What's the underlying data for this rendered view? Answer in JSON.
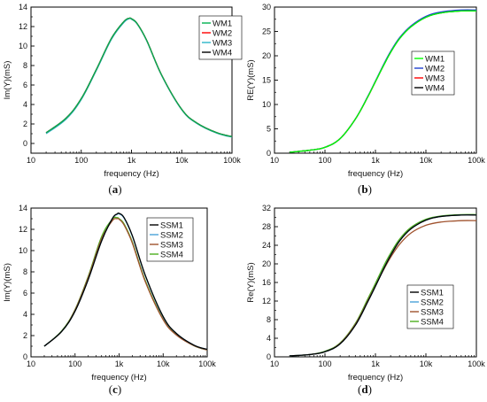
{
  "figure": {
    "captions": [
      "(a)",
      "(b)",
      "(c)",
      "(d)"
    ],
    "caption_bold_letters": [
      "a",
      "b",
      "c",
      "d"
    ]
  },
  "chart_data": [
    {
      "type": "line",
      "panel": "a",
      "xlabel": "frequency (Hz)",
      "ylabel": "Im(Y)(mS)",
      "xscale": "log",
      "xlim": [
        10,
        100000
      ],
      "ylim": [
        -1,
        14
      ],
      "x_ticks": [
        10,
        100,
        1000,
        10000,
        100000
      ],
      "x_tick_labels": [
        "10",
        "100",
        "1k",
        "10k",
        "100k"
      ],
      "y_ticks": [
        0,
        2,
        4,
        6,
        8,
        10,
        12,
        14
      ],
      "y_tick_labels": [
        "0",
        "2",
        "4",
        "6",
        "8",
        "10",
        "12",
        "14"
      ],
      "legend_position": "top-right",
      "x": [
        20,
        50,
        100,
        200,
        400,
        700,
        900,
        1000,
        1300,
        2000,
        4000,
        10000,
        20000,
        50000,
        100000
      ],
      "series": [
        {
          "name": "WM1",
          "color": "#00b050",
          "values": [
            1.1,
            2.6,
            4.6,
            7.6,
            10.8,
            12.5,
            12.85,
            12.8,
            12.3,
            10.6,
            7.0,
            3.5,
            2.1,
            1.1,
            0.7
          ]
        },
        {
          "name": "WM2",
          "color": "#ff0000",
          "values": [
            1.1,
            2.6,
            4.6,
            7.6,
            10.8,
            12.5,
            12.85,
            12.8,
            12.3,
            10.6,
            7.0,
            3.5,
            2.1,
            1.1,
            0.7
          ]
        },
        {
          "name": "WM3",
          "color": "#2ab7c9",
          "values": [
            1.0,
            2.5,
            4.5,
            7.5,
            10.7,
            12.4,
            12.8,
            12.75,
            12.25,
            10.55,
            6.95,
            3.45,
            2.05,
            1.05,
            0.65
          ]
        },
        {
          "name": "WM4",
          "color": "#000000",
          "values": [
            1.1,
            2.6,
            4.6,
            7.6,
            10.8,
            12.5,
            12.85,
            12.8,
            12.3,
            10.6,
            7.0,
            3.5,
            2.1,
            1.1,
            0.7
          ]
        }
      ]
    },
    {
      "type": "line",
      "panel": "b",
      "xlabel": "frequency (Hz)",
      "ylabel": "RE(Y)(mS)",
      "xscale": "log",
      "xlim": [
        10,
        100000
      ],
      "ylim": [
        0,
        30
      ],
      "x_ticks": [
        10,
        100,
        1000,
        10000,
        100000
      ],
      "x_tick_labels": [
        "10",
        "100",
        "1k",
        "10k",
        "100k"
      ],
      "y_ticks": [
        0,
        5,
        10,
        15,
        20,
        25,
        30
      ],
      "y_tick_labels": [
        "0",
        "5",
        "10",
        "15",
        "20",
        "25",
        "30"
      ],
      "legend_position": "center-right",
      "x": [
        20,
        50,
        100,
        200,
        400,
        700,
        1000,
        1500,
        2000,
        3000,
        5000,
        10000,
        20000,
        50000,
        100000
      ],
      "series": [
        {
          "name": "WM1",
          "color": "#00ff00",
          "values": [
            0.2,
            0.6,
            1.2,
            3.0,
            7.0,
            11.5,
            14.7,
            18.3,
            20.7,
            23.5,
            25.9,
            27.9,
            28.8,
            29.2,
            29.2
          ]
        },
        {
          "name": "WM2",
          "color": "#1f3fd0",
          "values": [
            0.2,
            0.6,
            1.2,
            3.0,
            7.0,
            11.6,
            14.8,
            18.5,
            20.9,
            23.7,
            26.1,
            28.1,
            29.0,
            29.4,
            29.4
          ]
        },
        {
          "name": "WM3",
          "color": "#ff0000",
          "values": [
            0.2,
            0.6,
            1.2,
            3.0,
            7.0,
            11.5,
            14.7,
            18.4,
            20.8,
            23.6,
            26.0,
            28.0,
            28.9,
            29.3,
            29.3
          ]
        },
        {
          "name": "WM4",
          "color": "#000000",
          "values": [
            0.2,
            0.6,
            1.2,
            3.0,
            7.0,
            11.5,
            14.7,
            18.3,
            20.7,
            23.5,
            25.9,
            27.9,
            28.8,
            29.2,
            29.2
          ]
        }
      ]
    },
    {
      "type": "line",
      "panel": "c",
      "xlabel": "frequency (Hz)",
      "ylabel": "Im(Y)(mS)",
      "xscale": "log",
      "xlim": [
        10,
        100000
      ],
      "ylim": [
        0,
        14
      ],
      "x_ticks": [
        10,
        100,
        1000,
        10000,
        100000
      ],
      "x_tick_labels": [
        "10",
        "100",
        "1k",
        "10k",
        "100k"
      ],
      "y_ticks": [
        0,
        2,
        4,
        6,
        8,
        10,
        12,
        14
      ],
      "y_tick_labels": [
        "0",
        "2",
        "4",
        "6",
        "8",
        "10",
        "12",
        "14"
      ],
      "legend_position": "top-right",
      "x": [
        20,
        50,
        100,
        200,
        400,
        700,
        900,
        1000,
        1300,
        2000,
        4000,
        10000,
        20000,
        50000,
        100000
      ],
      "series": [
        {
          "name": "SSM1",
          "color": "#000000",
          "values": [
            1.0,
            2.4,
            4.3,
            7.3,
            10.9,
            13.0,
            13.45,
            13.5,
            13.1,
            11.4,
            7.6,
            3.8,
            2.2,
            1.1,
            0.7
          ]
        },
        {
          "name": "SSM2",
          "color": "#4aa3d8",
          "values": [
            1.0,
            2.4,
            4.3,
            7.3,
            10.9,
            13.0,
            13.4,
            13.45,
            13.05,
            11.35,
            7.55,
            3.75,
            2.2,
            1.1,
            0.7
          ]
        },
        {
          "name": "SSM3",
          "color": "#a0522d",
          "values": [
            1.0,
            2.4,
            4.4,
            7.5,
            11.1,
            12.8,
            13.0,
            12.95,
            12.4,
            10.7,
            7.0,
            3.5,
            2.05,
            1.05,
            0.65
          ]
        },
        {
          "name": "SSM4",
          "color": "#4caf20",
          "values": [
            1.0,
            2.45,
            4.45,
            7.6,
            11.3,
            12.95,
            13.1,
            13.0,
            12.5,
            10.8,
            7.1,
            3.55,
            2.1,
            1.05,
            0.65
          ]
        }
      ]
    },
    {
      "type": "line",
      "panel": "d",
      "xlabel": "frequency (Hz)",
      "ylabel": "Re(Y)(mS)",
      "xscale": "log",
      "xlim": [
        10,
        100000
      ],
      "ylim": [
        0,
        32
      ],
      "x_ticks": [
        10,
        100,
        1000,
        10000,
        100000
      ],
      "x_tick_labels": [
        "10",
        "100",
        "1k",
        "10k",
        "100k"
      ],
      "y_ticks": [
        0,
        4,
        8,
        12,
        16,
        20,
        24,
        28,
        32
      ],
      "y_tick_labels": [
        "0",
        "4",
        "8",
        "12",
        "16",
        "20",
        "24",
        "28",
        "32"
      ],
      "legend_position": "center-right",
      "x": [
        20,
        50,
        100,
        200,
        400,
        700,
        1000,
        1500,
        2000,
        3000,
        5000,
        10000,
        20000,
        50000,
        100000
      ],
      "series": [
        {
          "name": "SSM1",
          "color": "#000000",
          "values": [
            0.2,
            0.5,
            1.1,
            2.8,
            6.8,
            11.8,
            15.2,
            19.2,
            21.8,
            24.9,
            27.5,
            29.4,
            30.2,
            30.5,
            30.5
          ]
        },
        {
          "name": "SSM2",
          "color": "#4aa3d8",
          "values": [
            0.2,
            0.5,
            1.1,
            2.8,
            6.8,
            11.8,
            15.2,
            19.2,
            21.8,
            24.9,
            27.5,
            29.4,
            30.2,
            30.5,
            30.5
          ]
        },
        {
          "name": "SSM3",
          "color": "#a0522d",
          "values": [
            0.2,
            0.5,
            1.1,
            2.9,
            7.0,
            12.0,
            15.3,
            19.0,
            21.4,
            24.2,
            26.6,
            28.3,
            29.0,
            29.3,
            29.3
          ]
        },
        {
          "name": "SSM4",
          "color": "#4caf20",
          "values": [
            0.2,
            0.5,
            1.2,
            3.0,
            7.2,
            12.4,
            15.8,
            19.8,
            22.3,
            25.3,
            27.8,
            29.6,
            30.3,
            30.6,
            30.6
          ]
        }
      ]
    }
  ]
}
